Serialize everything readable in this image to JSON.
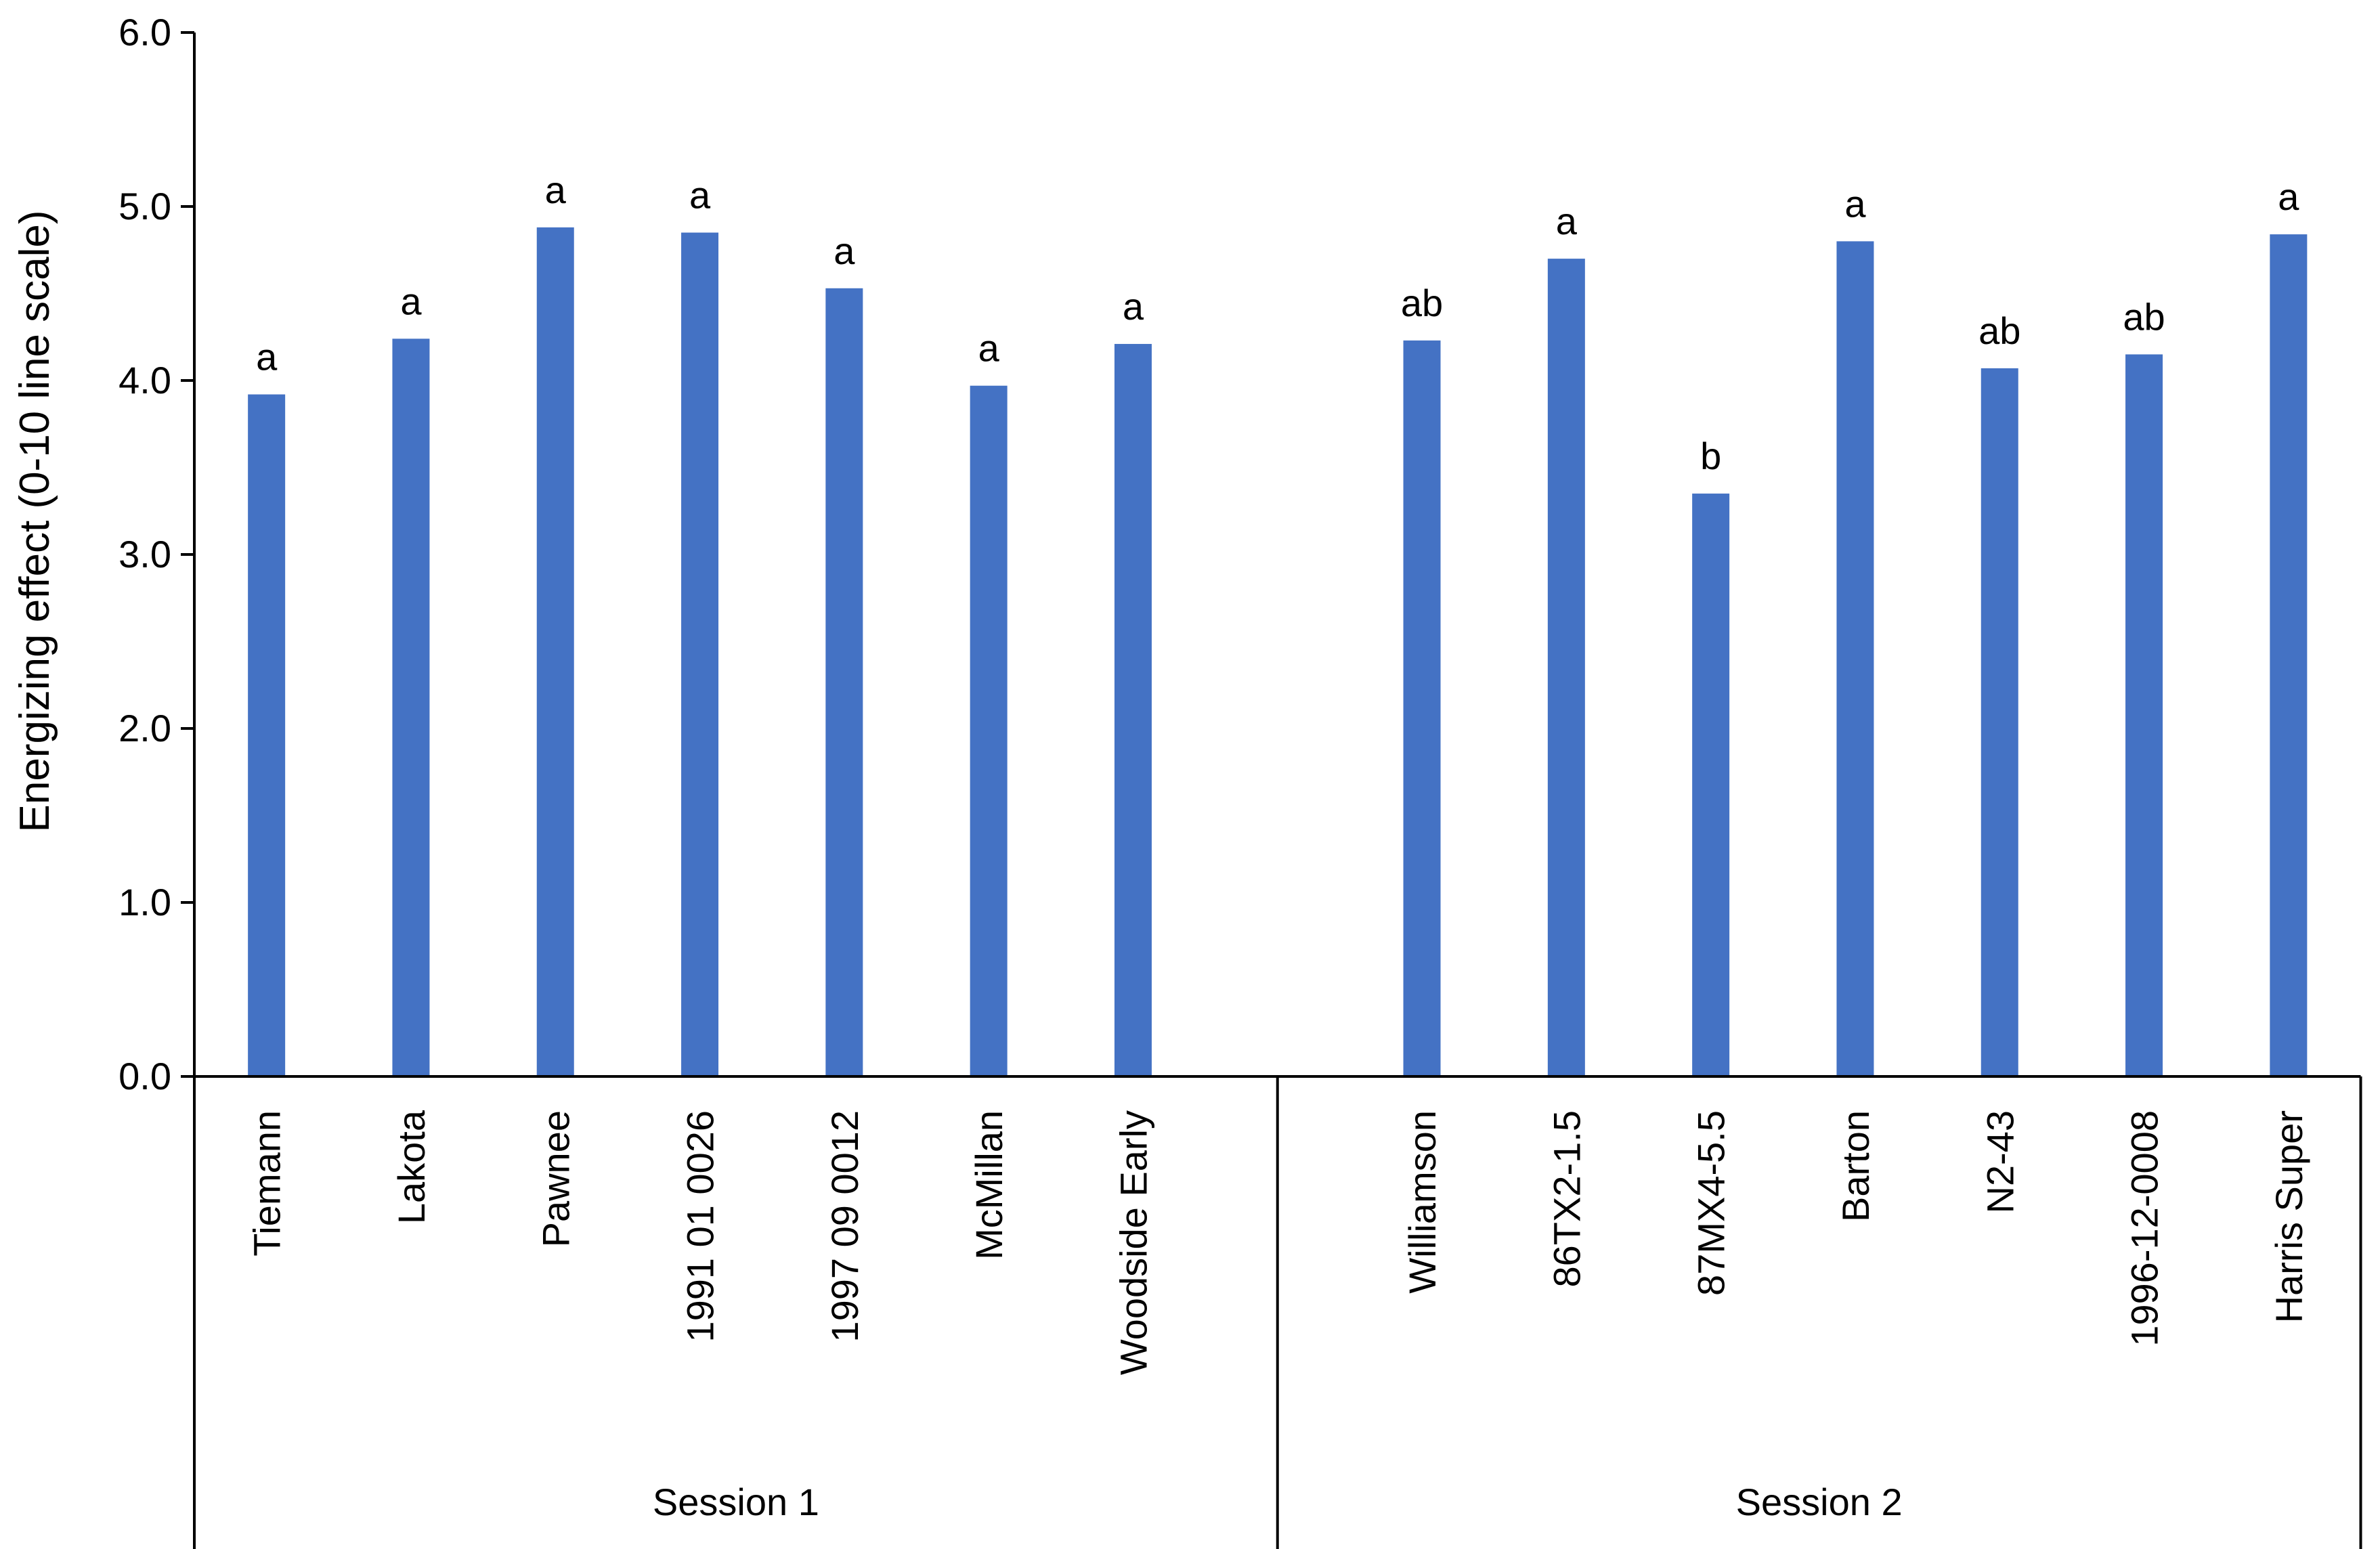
{
  "chart_data": {
    "type": "bar",
    "title": "",
    "xlabel": "",
    "ylabel": "Energizing effect (0-10 line scale)",
    "ylim": [
      0,
      6
    ],
    "yticks": [
      "0.0",
      "1.0",
      "2.0",
      "3.0",
      "4.0",
      "5.0",
      "6.0"
    ],
    "grid": false,
    "legend": "none",
    "bar_color": "#4472C4",
    "groups": [
      {
        "label": "Session 1",
        "bars": [
          {
            "category": "Tiemann",
            "value": 3.92,
            "sig": "a"
          },
          {
            "category": "Lakota",
            "value": 4.24,
            "sig": "a"
          },
          {
            "category": "Pawnee",
            "value": 4.88,
            "sig": "a"
          },
          {
            "category": "1991 01 0026",
            "value": 4.85,
            "sig": "a"
          },
          {
            "category": "1997 09 0012",
            "value": 4.53,
            "sig": "a"
          },
          {
            "category": "McMillan",
            "value": 3.97,
            "sig": "a"
          },
          {
            "category": "Woodside Early",
            "value": 4.21,
            "sig": "a"
          }
        ]
      },
      {
        "label": "Session 2",
        "bars": [
          {
            "category": "Williamson",
            "value": 4.23,
            "sig": "ab"
          },
          {
            "category": "86TX2-1.5",
            "value": 4.7,
            "sig": "a"
          },
          {
            "category": "87MX4-5.5",
            "value": 3.35,
            "sig": "b"
          },
          {
            "category": "Barton",
            "value": 4.8,
            "sig": "a"
          },
          {
            "category": "N2-43",
            "value": 4.07,
            "sig": "ab"
          },
          {
            "category": "1996-12-0008",
            "value": 4.15,
            "sig": "ab"
          },
          {
            "category": "Harris Super",
            "value": 4.84,
            "sig": "a"
          }
        ]
      }
    ]
  }
}
